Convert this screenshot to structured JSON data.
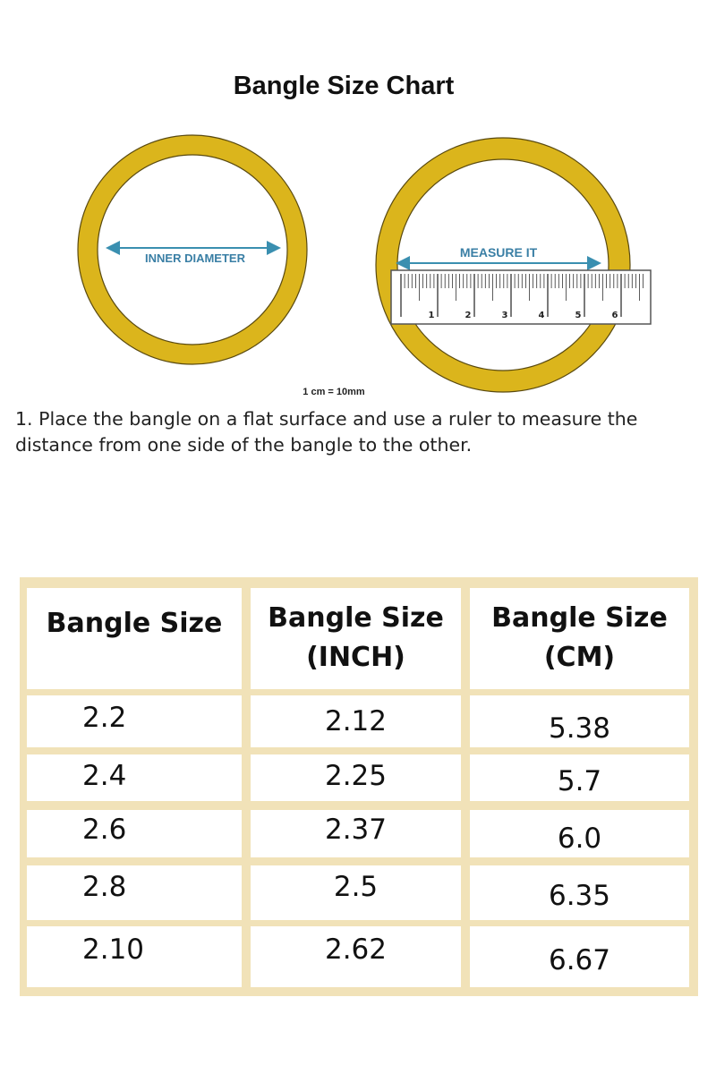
{
  "title": "Bangle Size Chart",
  "diagram": {
    "inner_diameter_label": "INNER DIAMETER",
    "measure_label": "MEASURE IT",
    "ruler_numbers": [
      "1",
      "2",
      "3",
      "4",
      "5",
      "6"
    ],
    "scale_note": "1 cm = 10mm",
    "colors": {
      "ring": "#dbb51c",
      "arrow": "#3a8fb0",
      "label": "#3a7fa5"
    }
  },
  "instruction": "1. Place the bangle on a flat surface and use a ruler to measure the distance from one side of the bangle to the other.",
  "table": {
    "headers": [
      [
        "Bangle Size",
        ""
      ],
      [
        "Bangle Size",
        "(INCH)"
      ],
      [
        "Bangle Size",
        "(CM)"
      ]
    ],
    "rows": [
      [
        "2.2",
        "2.12",
        "5.38"
      ],
      [
        "2.4",
        "2.25",
        "5.7"
      ],
      [
        "2.6",
        "2.37",
        "6.0"
      ],
      [
        "2.8",
        "2.5",
        "6.35"
      ],
      [
        "2.10",
        "2.62",
        "6.67"
      ]
    ],
    "frame_color": "#f1e2b8"
  }
}
